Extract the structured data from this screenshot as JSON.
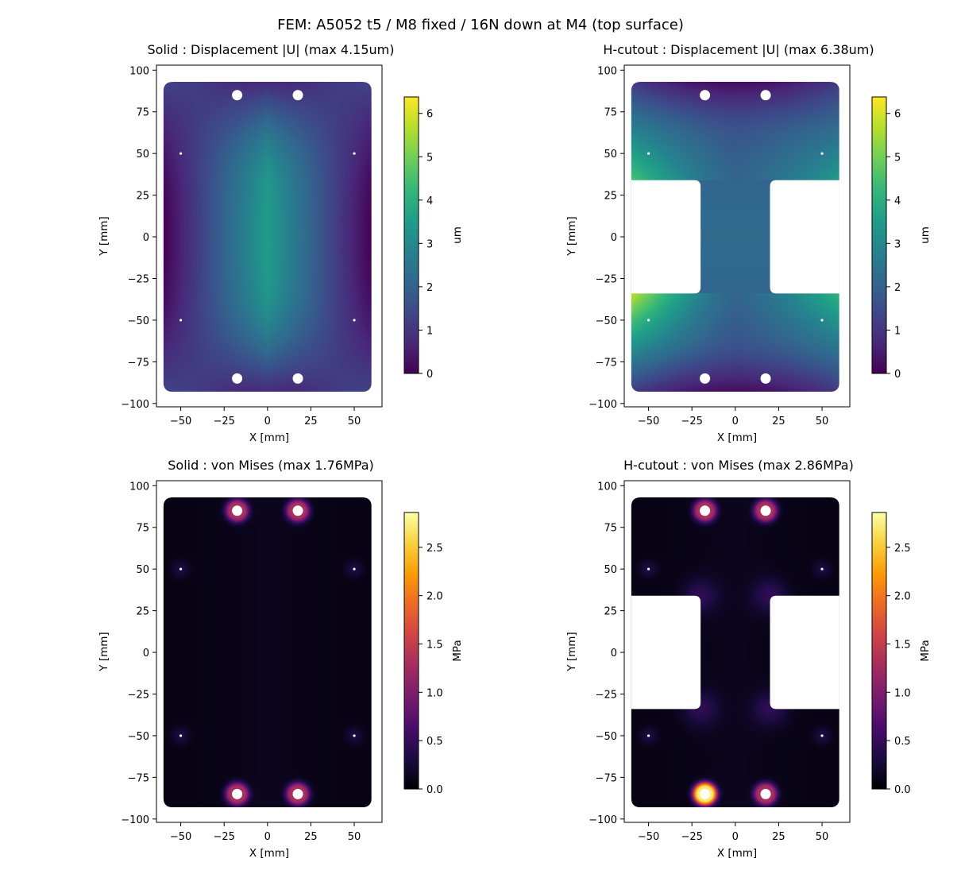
{
  "figure": {
    "suptitle": "FEM: A5052 t5 / M8 fixed / 16N down at M4  (top surface)"
  },
  "colors": {
    "axes": "#000000",
    "viridis": [
      "#440154",
      "#482878",
      "#3e4989",
      "#31688e",
      "#26828e",
      "#1f9e89",
      "#35b779",
      "#6ece58",
      "#b5de2b",
      "#fde725"
    ],
    "inferno": [
      "#000004",
      "#1b0c41",
      "#4a0c6b",
      "#781c6d",
      "#a52c60",
      "#cf4446",
      "#ed6925",
      "#fb9b06",
      "#f7d13d",
      "#fcffa4"
    ]
  },
  "chart_data": [
    {
      "type": "heatmap",
      "title": "Solid : Displacement |U|  (max 4.15um)",
      "xlabel": "X [mm]",
      "ylabel": "Y [mm]",
      "xlim": [
        -64,
        66
      ],
      "ylim": [
        -102,
        103
      ],
      "xticks": [
        -50,
        -25,
        0,
        25,
        50
      ],
      "xtick_labels": [
        "−50",
        "−25",
        "0",
        "25",
        "50"
      ],
      "yticks": [
        -100,
        -75,
        -50,
        -25,
        0,
        25,
        50,
        75,
        100
      ],
      "ytick_labels": [
        "−100",
        "−75",
        "−50",
        "−25",
        "0",
        "25",
        "50",
        "75",
        "100"
      ],
      "shape": "solid",
      "field": "displacement",
      "max_value": 4.15,
      "colormap": "viridis",
      "colorbar": {
        "label": "um",
        "min": 0,
        "max": 6.38,
        "ticks": [
          0,
          1,
          2,
          3,
          4,
          5,
          6
        ],
        "tick_labels": [
          "0",
          "1",
          "2",
          "3",
          "4",
          "5",
          "6"
        ]
      },
      "plate_outline": {
        "x": [
          -60,
          60
        ],
        "y": [
          -93,
          93
        ]
      },
      "cutout": null,
      "holes_large": [
        [
          -17.5,
          85
        ],
        [
          17.5,
          85
        ],
        [
          -17.5,
          -85
        ],
        [
          17.5,
          -85
        ]
      ],
      "holes_small": [
        [
          -50,
          50
        ],
        [
          50,
          50
        ],
        [
          -50,
          -50
        ],
        [
          50,
          -50
        ]
      ]
    },
    {
      "type": "heatmap",
      "title": "H-cutout : Displacement |U|  (max 6.38um)",
      "xlabel": "X [mm]",
      "ylabel": "Y [mm]",
      "xlim": [
        -64,
        66
      ],
      "ylim": [
        -102,
        103
      ],
      "xticks": [
        -50,
        -25,
        0,
        25,
        50
      ],
      "xtick_labels": [
        "−50",
        "−25",
        "0",
        "25",
        "50"
      ],
      "yticks": [
        -100,
        -75,
        -50,
        -25,
        0,
        25,
        50,
        75,
        100
      ],
      "ytick_labels": [
        "−100",
        "−75",
        "−50",
        "−25",
        "0",
        "25",
        "50",
        "75",
        "100"
      ],
      "shape": "h-cutout",
      "field": "displacement",
      "max_value": 6.38,
      "colormap": "viridis",
      "colorbar": {
        "label": "um",
        "min": 0,
        "max": 6.38,
        "ticks": [
          0,
          1,
          2,
          3,
          4,
          5,
          6
        ],
        "tick_labels": [
          "0",
          "1",
          "2",
          "3",
          "4",
          "5",
          "6"
        ]
      },
      "plate_outline": {
        "x": [
          -60,
          60
        ],
        "y": [
          -93,
          93
        ]
      },
      "cutout": {
        "web_x": [
          -20,
          20
        ],
        "window_y": [
          -34,
          34
        ]
      },
      "holes_large": [
        [
          -17.5,
          85
        ],
        [
          17.5,
          85
        ],
        [
          -17.5,
          -85
        ],
        [
          17.5,
          -85
        ]
      ],
      "holes_small": [
        [
          -50,
          50
        ],
        [
          50,
          50
        ],
        [
          -50,
          -50
        ],
        [
          50,
          -50
        ]
      ]
    },
    {
      "type": "heatmap",
      "title": "Solid : von Mises  (max 1.76MPa)",
      "xlabel": "X [mm]",
      "ylabel": "Y [mm]",
      "xlim": [
        -64,
        66
      ],
      "ylim": [
        -102,
        103
      ],
      "xticks": [
        -50,
        -25,
        0,
        25,
        50
      ],
      "xtick_labels": [
        "−50",
        "−25",
        "0",
        "25",
        "50"
      ],
      "yticks": [
        -100,
        -75,
        -50,
        -25,
        0,
        25,
        50,
        75,
        100
      ],
      "ytick_labels": [
        "−100",
        "−75",
        "−50",
        "−25",
        "0",
        "25",
        "50",
        "75",
        "100"
      ],
      "shape": "solid",
      "field": "stress",
      "max_value": 1.76,
      "colormap": "inferno",
      "colorbar": {
        "label": "MPa",
        "min": 0,
        "max": 2.86,
        "ticks": [
          0,
          0.5,
          1,
          1.5,
          2,
          2.5
        ],
        "tick_labels": [
          "0.0",
          "0.5",
          "1.0",
          "1.5",
          "2.0",
          "2.5"
        ]
      },
      "plate_outline": {
        "x": [
          -60,
          60
        ],
        "y": [
          -93,
          93
        ]
      },
      "cutout": null,
      "holes_large": [
        [
          -17.5,
          85
        ],
        [
          17.5,
          85
        ],
        [
          -17.5,
          -85
        ],
        [
          17.5,
          -85
        ]
      ],
      "holes_small": [
        [
          -50,
          50
        ],
        [
          50,
          50
        ],
        [
          -50,
          -50
        ],
        [
          50,
          -50
        ]
      ]
    },
    {
      "type": "heatmap",
      "title": "H-cutout : von Mises  (max 2.86MPa)",
      "xlabel": "X [mm]",
      "ylabel": "Y [mm]",
      "xlim": [
        -64,
        66
      ],
      "ylim": [
        -102,
        103
      ],
      "xticks": [
        -50,
        -25,
        0,
        25,
        50
      ],
      "xtick_labels": [
        "−50",
        "−25",
        "0",
        "25",
        "50"
      ],
      "yticks": [
        -100,
        -75,
        -50,
        -25,
        0,
        25,
        50,
        75,
        100
      ],
      "ytick_labels": [
        "−100",
        "−75",
        "−50",
        "−25",
        "0",
        "25",
        "50",
        "75",
        "100"
      ],
      "shape": "h-cutout",
      "field": "stress",
      "max_value": 2.86,
      "colormap": "inferno",
      "colorbar": {
        "label": "MPa",
        "min": 0,
        "max": 2.86,
        "ticks": [
          0,
          0.5,
          1,
          1.5,
          2,
          2.5
        ],
        "tick_labels": [
          "0.0",
          "0.5",
          "1.0",
          "1.5",
          "2.0",
          "2.5"
        ]
      },
      "plate_outline": {
        "x": [
          -60,
          60
        ],
        "y": [
          -93,
          93
        ]
      },
      "cutout": {
        "web_x": [
          -20,
          20
        ],
        "window_y": [
          -34,
          34
        ]
      },
      "holes_large": [
        [
          -17.5,
          85
        ],
        [
          17.5,
          85
        ],
        [
          -17.5,
          -85
        ],
        [
          17.5,
          -85
        ]
      ],
      "holes_small": [
        [
          -50,
          50
        ],
        [
          50,
          50
        ],
        [
          -50,
          -50
        ],
        [
          50,
          -50
        ]
      ]
    }
  ]
}
